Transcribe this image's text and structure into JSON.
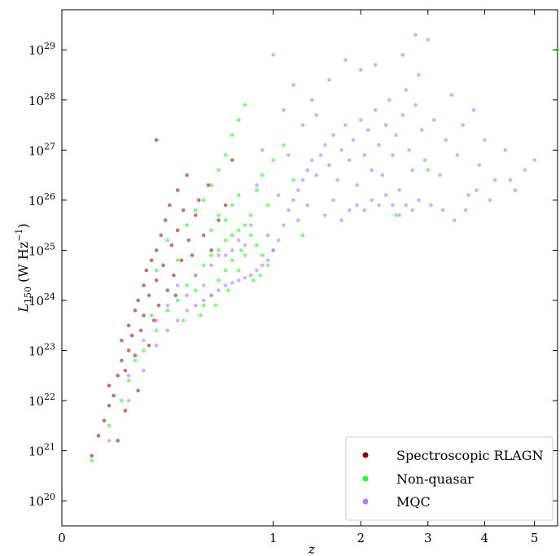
{
  "chart_data": {
    "type": "scatter",
    "xlabel": "z",
    "ylabel_main": "L",
    "ylabel_sub": "150",
    "ylabel_unit_open": " (W Hz",
    "ylabel_unit_sup": "−1",
    "ylabel_unit_close": ")",
    "x_scale": "sqrt",
    "y_scale": "log",
    "xlim": [
      0,
      5.5
    ],
    "ylim_log10": [
      19.5,
      29.8
    ],
    "x_ticks": [
      {
        "value": 0,
        "label": "0"
      },
      {
        "value": 1,
        "label": "1"
      },
      {
        "value": 2,
        "label": "2"
      },
      {
        "value": 3,
        "label": "3"
      },
      {
        "value": 4,
        "label": "4"
      },
      {
        "value": 5,
        "label": "5"
      }
    ],
    "y_ticks": [
      {
        "exp": 20,
        "base": "10",
        "sup": "20"
      },
      {
        "exp": 21,
        "base": "10",
        "sup": "21"
      },
      {
        "exp": 22,
        "base": "10",
        "sup": "22"
      },
      {
        "exp": 23,
        "base": "10",
        "sup": "23"
      },
      {
        "exp": 24,
        "base": "10",
        "sup": "24"
      },
      {
        "exp": 25,
        "base": "10",
        "sup": "25"
      },
      {
        "exp": 26,
        "base": "10",
        "sup": "26"
      },
      {
        "exp": 27,
        "base": "10",
        "sup": "27"
      },
      {
        "exp": 28,
        "base": "10",
        "sup": "28"
      },
      {
        "exp": 29,
        "base": "10",
        "sup": "29"
      }
    ],
    "grid": false,
    "legend_position": "bottom-right",
    "series": [
      {
        "name": "Spectroscopic RLAGN",
        "color": "#8b0000",
        "points": [
          [
            0.02,
            20.9
          ],
          [
            0.03,
            21.3
          ],
          [
            0.04,
            21.6
          ],
          [
            0.05,
            21.9
          ],
          [
            0.05,
            22.3
          ],
          [
            0.06,
            22.1
          ],
          [
            0.07,
            22.5
          ],
          [
            0.08,
            22.8
          ],
          [
            0.08,
            23.2
          ],
          [
            0.09,
            22.6
          ],
          [
            0.1,
            23.0
          ],
          [
            0.1,
            23.5
          ],
          [
            0.11,
            23.3
          ],
          [
            0.12,
            23.8
          ],
          [
            0.12,
            22.9
          ],
          [
            0.13,
            24.0
          ],
          [
            0.14,
            23.4
          ],
          [
            0.15,
            24.3
          ],
          [
            0.15,
            23.7
          ],
          [
            0.16,
            24.6
          ],
          [
            0.17,
            24.1
          ],
          [
            0.18,
            24.8
          ],
          [
            0.19,
            23.6
          ],
          [
            0.2,
            25.0
          ],
          [
            0.2,
            24.4
          ],
          [
            0.22,
            25.3
          ],
          [
            0.23,
            24.7
          ],
          [
            0.24,
            25.6
          ],
          [
            0.25,
            24.2
          ],
          [
            0.26,
            25.9
          ],
          [
            0.27,
            25.1
          ],
          [
            0.28,
            24.5
          ],
          [
            0.3,
            26.2
          ],
          [
            0.3,
            25.4
          ],
          [
            0.32,
            24.8
          ],
          [
            0.33,
            25.8
          ],
          [
            0.35,
            26.5
          ],
          [
            0.36,
            25.2
          ],
          [
            0.38,
            24.9
          ],
          [
            0.4,
            25.7
          ],
          [
            0.42,
            26.0
          ],
          [
            0.45,
            25.3
          ],
          [
            0.48,
            26.3
          ],
          [
            0.5,
            25.0
          ],
          [
            0.55,
            25.6
          ],
          [
            0.6,
            25.9
          ],
          [
            0.65,
            26.8
          ],
          [
            0.2,
            27.2
          ],
          [
            0.13,
            22.2
          ],
          [
            0.09,
            21.8
          ],
          [
            0.07,
            21.2
          ],
          [
            0.17,
            23.1
          ],
          [
            0.21,
            23.9
          ],
          [
            0.29,
            24.1
          ]
        ]
      },
      {
        "name": "Non-quasar",
        "color": "#22ff22",
        "points": [
          [
            0.02,
            20.8
          ],
          [
            0.05,
            21.5
          ],
          [
            0.1,
            22.4
          ],
          [
            0.15,
            23.0
          ],
          [
            0.2,
            23.4
          ],
          [
            0.25,
            23.8
          ],
          [
            0.3,
            24.0
          ],
          [
            0.35,
            24.3
          ],
          [
            0.4,
            24.5
          ],
          [
            0.45,
            24.7
          ],
          [
            0.5,
            24.9
          ],
          [
            0.55,
            25.0
          ],
          [
            0.6,
            25.2
          ],
          [
            0.65,
            25.3
          ],
          [
            0.7,
            25.4
          ],
          [
            0.75,
            25.5
          ],
          [
            0.8,
            25.3
          ],
          [
            0.85,
            25.1
          ],
          [
            0.9,
            24.9
          ],
          [
            0.3,
            24.8
          ],
          [
            0.35,
            25.5
          ],
          [
            0.4,
            25.8
          ],
          [
            0.45,
            26.0
          ],
          [
            0.5,
            26.3
          ],
          [
            0.55,
            26.6
          ],
          [
            0.6,
            26.9
          ],
          [
            0.65,
            27.3
          ],
          [
            0.7,
            27.6
          ],
          [
            0.75,
            27.9
          ],
          [
            0.4,
            24.2
          ],
          [
            0.45,
            23.9
          ],
          [
            0.5,
            24.1
          ],
          [
            0.55,
            24.4
          ],
          [
            0.6,
            24.6
          ],
          [
            0.65,
            24.8
          ],
          [
            0.7,
            24.6
          ],
          [
            0.75,
            24.9
          ],
          [
            0.8,
            25.7
          ],
          [
            0.85,
            26.2
          ],
          [
            0.9,
            26.5
          ],
          [
            0.95,
            25.9
          ],
          [
            1.0,
            26.8
          ],
          [
            1.1,
            27.1
          ],
          [
            1.2,
            26.4
          ],
          [
            0.25,
            25.2
          ],
          [
            0.2,
            24.6
          ],
          [
            0.18,
            23.7
          ],
          [
            0.12,
            22.8
          ],
          [
            0.08,
            22.0
          ],
          [
            0.6,
            25.6
          ],
          [
            0.65,
            25.9
          ],
          [
            0.7,
            26.1
          ],
          [
            0.5,
            25.4
          ],
          [
            0.55,
            25.7
          ],
          [
            0.62,
            24.2
          ],
          [
            0.72,
            25.0
          ],
          [
            0.82,
            24.4
          ],
          [
            0.33,
            23.6
          ],
          [
            0.43,
            23.7
          ],
          [
            0.53,
            23.9
          ],
          [
            2.5,
            25.7
          ],
          [
            3.0,
            26.6
          ],
          [
            5.5,
            29.0
          ],
          [
            1.3,
            25.3
          ],
          [
            1.0,
            25.0
          ],
          [
            0.95,
            24.7
          ],
          [
            0.88,
            24.5
          ]
        ]
      },
      {
        "name": "MQC",
        "color": "#b07aff",
        "points": [
          [
            0.05,
            21.2
          ],
          [
            0.1,
            22.0
          ],
          [
            0.15,
            22.6
          ],
          [
            0.2,
            23.1
          ],
          [
            0.25,
            23.4
          ],
          [
            0.3,
            23.6
          ],
          [
            0.35,
            23.8
          ],
          [
            0.4,
            23.9
          ],
          [
            0.45,
            24.0
          ],
          [
            0.5,
            24.1
          ],
          [
            0.55,
            24.2
          ],
          [
            0.6,
            24.3
          ],
          [
            0.65,
            24.35
          ],
          [
            0.7,
            24.4
          ],
          [
            0.75,
            24.45
          ],
          [
            0.8,
            24.5
          ],
          [
            0.85,
            24.6
          ],
          [
            0.9,
            24.7
          ],
          [
            0.95,
            24.8
          ],
          [
            1.0,
            25.0
          ],
          [
            1.05,
            25.2
          ],
          [
            1.1,
            25.5
          ],
          [
            1.15,
            25.8
          ],
          [
            1.2,
            26.0
          ],
          [
            1.25,
            26.2
          ],
          [
            1.3,
            26.4
          ],
          [
            1.35,
            26.6
          ],
          [
            1.4,
            26.8
          ],
          [
            1.45,
            26.5
          ],
          [
            1.5,
            26.9
          ],
          [
            1.55,
            27.1
          ],
          [
            1.6,
            26.7
          ],
          [
            1.65,
            27.3
          ],
          [
            1.7,
            26.4
          ],
          [
            1.75,
            27.0
          ],
          [
            1.8,
            27.5
          ],
          [
            1.85,
            26.8
          ],
          [
            1.9,
            27.2
          ],
          [
            1.95,
            26.3
          ],
          [
            2.0,
            27.6
          ],
          [
            2.05,
            26.9
          ],
          [
            2.1,
            27.4
          ],
          [
            2.15,
            26.6
          ],
          [
            2.2,
            27.8
          ],
          [
            2.25,
            27.1
          ],
          [
            2.3,
            26.5
          ],
          [
            2.35,
            27.5
          ],
          [
            2.4,
            28.0
          ],
          [
            2.45,
            26.9
          ],
          [
            2.5,
            27.3
          ],
          [
            2.55,
            26.2
          ],
          [
            2.6,
            27.7
          ],
          [
            2.65,
            28.2
          ],
          [
            2.7,
            27.0
          ],
          [
            2.75,
            26.6
          ],
          [
            2.8,
            27.9
          ],
          [
            2.85,
            28.5
          ],
          [
            2.9,
            27.4
          ],
          [
            2.95,
            26.8
          ],
          [
            3.0,
            29.2
          ],
          [
            3.1,
            27.6
          ],
          [
            3.2,
            26.5
          ],
          [
            3.3,
            27.2
          ],
          [
            3.4,
            28.1
          ],
          [
            3.5,
            26.9
          ],
          [
            3.6,
            27.5
          ],
          [
            3.7,
            26.1
          ],
          [
            3.8,
            27.8
          ],
          [
            3.9,
            26.7
          ],
          [
            4.0,
            27.2
          ],
          [
            4.2,
            26.4
          ],
          [
            4.4,
            27.0
          ],
          [
            4.6,
            26.2
          ],
          [
            4.8,
            26.6
          ],
          [
            5.0,
            26.8
          ],
          [
            1.1,
            27.8
          ],
          [
            1.2,
            28.3
          ],
          [
            1.3,
            27.5
          ],
          [
            1.0,
            28.9
          ],
          [
            0.9,
            27.0
          ],
          [
            0.85,
            26.3
          ],
          [
            0.8,
            25.5
          ],
          [
            0.7,
            25.2
          ],
          [
            0.6,
            24.9
          ],
          [
            1.4,
            28.0
          ],
          [
            1.6,
            28.4
          ],
          [
            1.8,
            28.8
          ],
          [
            2.0,
            28.6
          ],
          [
            2.2,
            28.7
          ],
          [
            2.6,
            28.9
          ],
          [
            2.8,
            29.3
          ],
          [
            1.05,
            26.1
          ],
          [
            1.15,
            26.9
          ],
          [
            1.25,
            25.6
          ],
          [
            1.35,
            25.9
          ],
          [
            1.45,
            27.7
          ],
          [
            1.55,
            25.7
          ],
          [
            1.65,
            26.0
          ],
          [
            1.75,
            25.6
          ],
          [
            1.85,
            25.8
          ],
          [
            1.95,
            25.9
          ],
          [
            2.05,
            25.8
          ],
          [
            2.15,
            26.0
          ],
          [
            2.25,
            25.9
          ],
          [
            2.35,
            26.1
          ],
          [
            2.45,
            25.9
          ],
          [
            2.55,
            25.7
          ],
          [
            2.65,
            25.9
          ],
          [
            2.75,
            25.8
          ],
          [
            2.85,
            26.0
          ],
          [
            3.05,
            25.9
          ],
          [
            3.25,
            25.8
          ],
          [
            3.45,
            25.6
          ],
          [
            3.65,
            25.8
          ],
          [
            3.85,
            26.2
          ],
          [
            4.1,
            26.0
          ],
          [
            4.5,
            26.4
          ],
          [
            0.4,
            24.5
          ],
          [
            0.5,
            24.7
          ],
          [
            0.55,
            24.9
          ],
          [
            0.45,
            24.3
          ],
          [
            0.35,
            24.1
          ],
          [
            0.3,
            24.3
          ],
          [
            0.25,
            23.9
          ],
          [
            0.2,
            23.6
          ],
          [
            0.15,
            23.2
          ],
          [
            0.1,
            22.5
          ],
          [
            0.65,
            25.0
          ],
          [
            0.75,
            25.1
          ],
          [
            0.95,
            25.3
          ]
        ]
      }
    ]
  }
}
